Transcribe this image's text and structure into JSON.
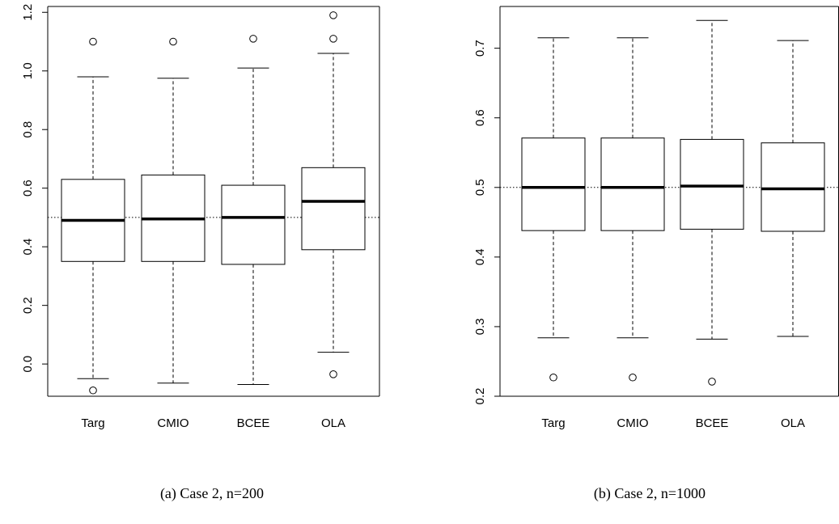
{
  "chart_data": [
    {
      "type": "boxplot",
      "caption": "(a) Case 2, n=200",
      "categories": [
        "Targ",
        "CMIO",
        "BCEE",
        "OLA"
      ],
      "ylim": [
        -0.11,
        1.22
      ],
      "yticks": [
        0.0,
        0.2,
        0.4,
        0.6,
        0.8,
        1.0,
        1.2
      ],
      "ytick_labels": [
        "0.0",
        "0.2",
        "0.4",
        "0.6",
        "0.8",
        "1.0",
        "1.2"
      ],
      "reference_line": 0.5,
      "boxes": [
        {
          "name": "Targ",
          "whisker_low": -0.05,
          "q1": 0.35,
          "median": 0.49,
          "q3": 0.63,
          "whisker_high": 0.98,
          "outliers": [
            1.1,
            -0.09
          ]
        },
        {
          "name": "CMIO",
          "whisker_low": -0.065,
          "q1": 0.35,
          "median": 0.495,
          "q3": 0.645,
          "whisker_high": 0.975,
          "outliers": [
            1.1
          ]
        },
        {
          "name": "BCEE",
          "whisker_low": -0.07,
          "q1": 0.34,
          "median": 0.5,
          "q3": 0.61,
          "whisker_high": 1.01,
          "outliers": [
            1.11
          ]
        },
        {
          "name": "OLA",
          "whisker_low": 0.04,
          "q1": 0.39,
          "median": 0.555,
          "q3": 0.67,
          "whisker_high": 1.06,
          "outliers": [
            1.19,
            1.11,
            -0.035
          ]
        }
      ]
    },
    {
      "type": "boxplot",
      "caption": "(b) Case 2, n=1000",
      "categories": [
        "Targ",
        "CMIO",
        "BCEE",
        "OLA"
      ],
      "ylim": [
        0.2,
        0.76
      ],
      "yticks": [
        0.2,
        0.3,
        0.4,
        0.5,
        0.6,
        0.7
      ],
      "ytick_labels": [
        "0.2",
        "0.3",
        "0.4",
        "0.5",
        "0.6",
        "0.7"
      ],
      "reference_line": 0.5,
      "boxes": [
        {
          "name": "Targ",
          "whisker_low": 0.284,
          "q1": 0.438,
          "median": 0.5,
          "q3": 0.571,
          "whisker_high": 0.715,
          "outliers": [
            0.227
          ]
        },
        {
          "name": "CMIO",
          "whisker_low": 0.284,
          "q1": 0.438,
          "median": 0.5,
          "q3": 0.571,
          "whisker_high": 0.715,
          "outliers": [
            0.227
          ]
        },
        {
          "name": "BCEE",
          "whisker_low": 0.282,
          "q1": 0.44,
          "median": 0.502,
          "q3": 0.569,
          "whisker_high": 0.74,
          "outliers": [
            0.221
          ]
        },
        {
          "name": "OLA",
          "whisker_low": 0.286,
          "q1": 0.437,
          "median": 0.498,
          "q3": 0.564,
          "whisker_high": 0.711,
          "outliers": []
        }
      ]
    }
  ]
}
